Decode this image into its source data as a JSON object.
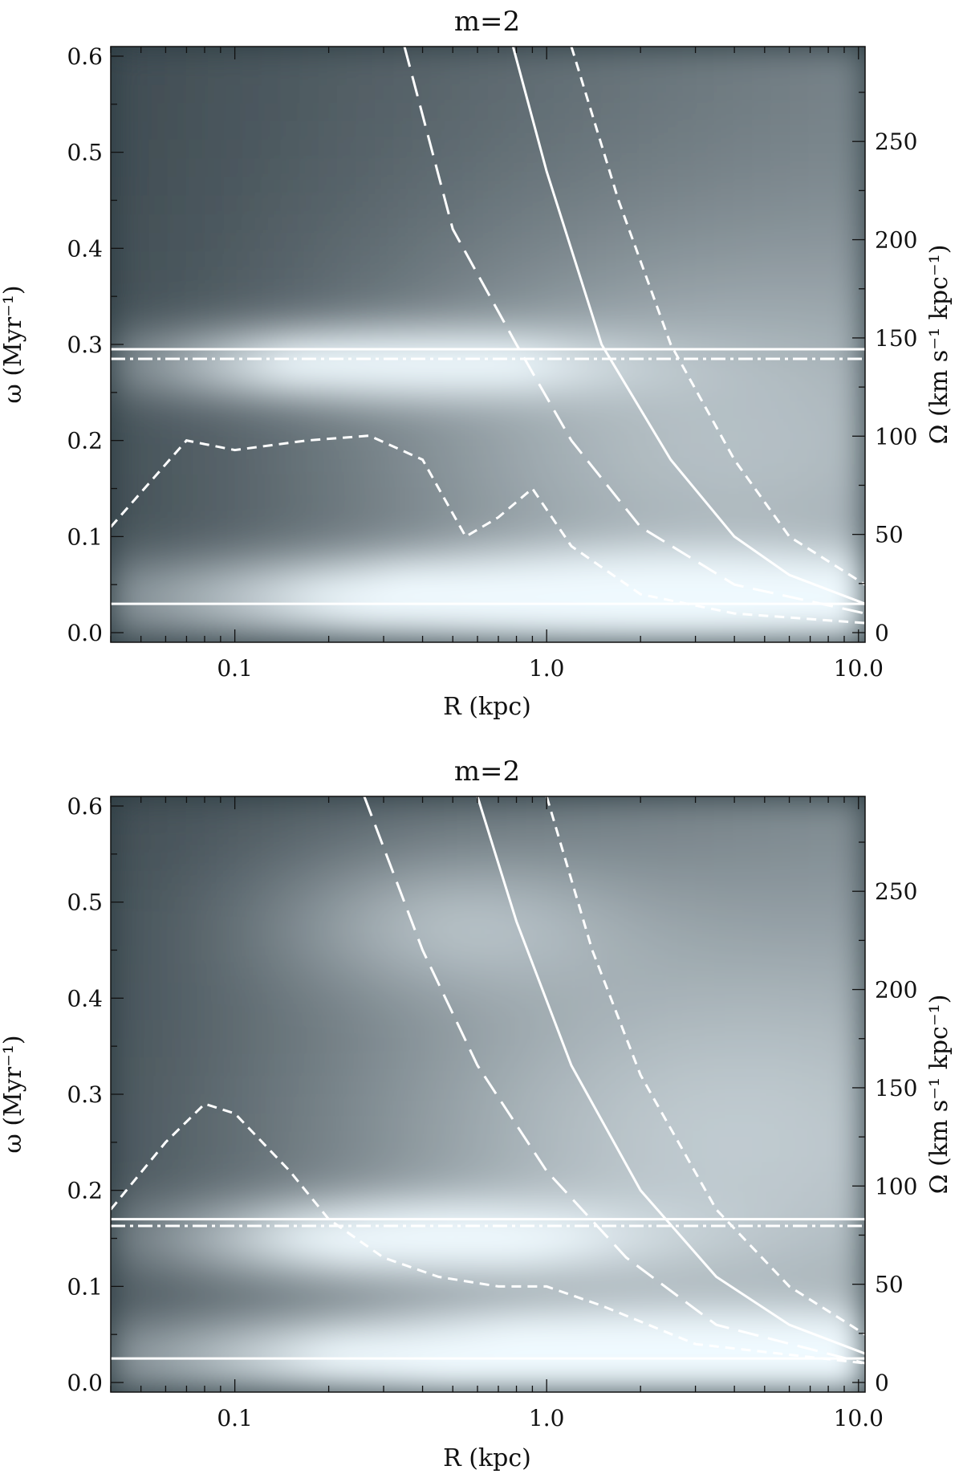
{
  "chart_data": [
    {
      "type": "heatmap",
      "title": "m=2",
      "xlabel": "R (kpc)",
      "ylabel": "ω (Myr⁻¹)",
      "ylabel_right": "Ω (km s⁻¹ kpc⁻¹)",
      "x_scale": "log",
      "xlim": [
        0.04,
        10.5
      ],
      "ylim": [
        -0.01,
        0.61
      ],
      "y2lim": [
        -4.9,
        298.3
      ],
      "x_ticks": [
        0.1,
        1.0,
        10.0
      ],
      "x_tick_labels": [
        "0.1",
        "1.0",
        "10.0"
      ],
      "y_ticks": [
        0.0,
        0.1,
        0.2,
        0.3,
        0.4,
        0.5,
        0.6
      ],
      "y_tick_labels": [
        "0.0",
        "0.1",
        "0.2",
        "0.3",
        "0.4",
        "0.5",
        "0.6"
      ],
      "y2_ticks": [
        0,
        50,
        100,
        150,
        200,
        250
      ],
      "y2_tick_labels": [
        "0",
        "50",
        "100",
        "150",
        "200",
        "250"
      ],
      "colormap": "grayscale-cyan (dark = low power, light = high power)",
      "hot_spots": [
        {
          "r": 1.4,
          "w": 0.035,
          "strength": 1.0,
          "sr": 1.0,
          "sw": 0.028
        },
        {
          "r": 0.25,
          "w": 0.28,
          "strength": 0.8,
          "sr": 0.5,
          "sw": 0.022
        },
        {
          "r": 2.5,
          "w": 0.2,
          "strength": 0.35,
          "sr": 0.8,
          "sw": 0.15
        }
      ],
      "series": [
        {
          "style": "solid-white",
          "points": [
            [
              0.78,
              0.61
            ],
            [
              1.0,
              0.48
            ],
            [
              1.5,
              0.3
            ],
            [
              2.5,
              0.18
            ],
            [
              4.0,
              0.1
            ],
            [
              6.0,
              0.06
            ],
            [
              10.5,
              0.03
            ]
          ]
        },
        {
          "style": "long-dash-white",
          "points": [
            [
              0.35,
              0.61
            ],
            [
              0.5,
              0.42
            ],
            [
              0.8,
              0.3
            ],
            [
              1.2,
              0.2
            ],
            [
              2.0,
              0.11
            ],
            [
              4.0,
              0.05
            ],
            [
              10.5,
              0.02
            ]
          ]
        },
        {
          "style": "short-dash-white",
          "points": [
            [
              1.2,
              0.61
            ],
            [
              1.7,
              0.45
            ],
            [
              2.5,
              0.3
            ],
            [
              4.0,
              0.18
            ],
            [
              6.0,
              0.1
            ],
            [
              10.5,
              0.05
            ]
          ]
        },
        {
          "style": "short-dash-white",
          "points": [
            [
              0.04,
              0.11
            ],
            [
              0.07,
              0.2
            ],
            [
              0.1,
              0.19
            ],
            [
              0.17,
              0.2
            ],
            [
              0.27,
              0.205
            ],
            [
              0.4,
              0.18
            ],
            [
              0.55,
              0.1
            ],
            [
              0.7,
              0.12
            ],
            [
              0.9,
              0.15
            ],
            [
              1.2,
              0.09
            ],
            [
              2.0,
              0.04
            ],
            [
              4.0,
              0.02
            ],
            [
              10.5,
              0.01
            ]
          ]
        },
        {
          "style": "solid-white-horizontal",
          "points": [
            [
              0.04,
              0.295
            ],
            [
              10.5,
              0.295
            ]
          ]
        },
        {
          "style": "dashdot-white-horizontal",
          "points": [
            [
              0.04,
              0.285
            ],
            [
              10.5,
              0.285
            ]
          ]
        },
        {
          "style": "solid-white-horizontal",
          "points": [
            [
              0.04,
              0.03
            ],
            [
              10.5,
              0.03
            ]
          ]
        }
      ]
    },
    {
      "type": "heatmap",
      "title": "m=2",
      "xlabel": "R (kpc)",
      "ylabel": "ω (Myr⁻¹)",
      "ylabel_right": "Ω (km s⁻¹ kpc⁻¹)",
      "x_scale": "log",
      "xlim": [
        0.04,
        10.5
      ],
      "ylim": [
        -0.01,
        0.61
      ],
      "y2lim": [
        -4.9,
        298.3
      ],
      "x_ticks": [
        0.1,
        1.0,
        10.0
      ],
      "x_tick_labels": [
        "0.1",
        "1.0",
        "10.0"
      ],
      "y_ticks": [
        0.0,
        0.1,
        0.2,
        0.3,
        0.4,
        0.5,
        0.6
      ],
      "y_tick_labels": [
        "0.0",
        "0.1",
        "0.2",
        "0.3",
        "0.4",
        "0.5",
        "0.6"
      ],
      "y2_ticks": [
        0,
        50,
        100,
        150,
        200,
        250
      ],
      "y2_tick_labels": [
        "0",
        "50",
        "100",
        "150",
        "200",
        "250"
      ],
      "colormap": "grayscale-cyan (dark = low power, light = high power)",
      "hot_spots": [
        {
          "r": 1.4,
          "w": 0.025,
          "strength": 1.0,
          "sr": 1.0,
          "sw": 0.028
        },
        {
          "r": 0.3,
          "w": 0.15,
          "strength": 0.7,
          "sr": 0.5,
          "sw": 0.025
        },
        {
          "r": 0.45,
          "w": 0.48,
          "strength": 0.3,
          "sr": 0.4,
          "sw": 0.05
        },
        {
          "r": 2.5,
          "w": 0.25,
          "strength": 0.4,
          "sr": 0.9,
          "sw": 0.18
        }
      ],
      "series": [
        {
          "style": "solid-white",
          "points": [
            [
              0.6,
              0.61
            ],
            [
              0.8,
              0.48
            ],
            [
              1.2,
              0.33
            ],
            [
              2.0,
              0.2
            ],
            [
              3.5,
              0.11
            ],
            [
              6.0,
              0.06
            ],
            [
              10.5,
              0.03
            ]
          ]
        },
        {
          "style": "long-dash-white",
          "points": [
            [
              0.26,
              0.61
            ],
            [
              0.4,
              0.45
            ],
            [
              0.6,
              0.33
            ],
            [
              1.0,
              0.22
            ],
            [
              1.8,
              0.13
            ],
            [
              3.5,
              0.06
            ],
            [
              10.5,
              0.02
            ]
          ]
        },
        {
          "style": "short-dash-white",
          "points": [
            [
              1.0,
              0.61
            ],
            [
              1.4,
              0.45
            ],
            [
              2.0,
              0.32
            ],
            [
              3.5,
              0.18
            ],
            [
              6.0,
              0.1
            ],
            [
              10.5,
              0.05
            ]
          ]
        },
        {
          "style": "short-dash-white",
          "points": [
            [
              0.04,
              0.18
            ],
            [
              0.06,
              0.25
            ],
            [
              0.08,
              0.29
            ],
            [
              0.1,
              0.28
            ],
            [
              0.15,
              0.22
            ],
            [
              0.2,
              0.17
            ],
            [
              0.3,
              0.13
            ],
            [
              0.45,
              0.11
            ],
            [
              0.7,
              0.1
            ],
            [
              1.0,
              0.1
            ],
            [
              1.5,
              0.08
            ],
            [
              3.0,
              0.04
            ],
            [
              10.5,
              0.02
            ]
          ]
        },
        {
          "style": "solid-white-horizontal",
          "points": [
            [
              0.04,
              0.17
            ],
            [
              10.5,
              0.17
            ]
          ]
        },
        {
          "style": "dashdot-white-horizontal",
          "points": [
            [
              0.04,
              0.163
            ],
            [
              10.5,
              0.163
            ]
          ]
        },
        {
          "style": "solid-white-horizontal",
          "points": [
            [
              0.04,
              0.025
            ],
            [
              10.5,
              0.025
            ]
          ]
        }
      ]
    }
  ]
}
